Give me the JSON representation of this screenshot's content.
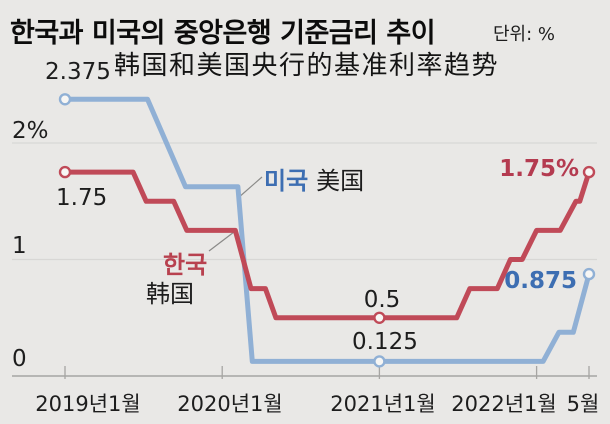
{
  "header": {
    "title": "한국과 미국의 중앙은행 기준금리 추이",
    "unit_label": "단위: %",
    "subtitle": "韩国和美国央行的基准利率趋势"
  },
  "chart_data": {
    "type": "line",
    "title": "한국과 미국의 중앙은행 기준금리 추이",
    "subtitle": "韩国和美国央行的基准利率趋势",
    "unit": "%",
    "grid": "horizontal",
    "y_range": [
      0,
      2.5
    ],
    "x_ticks": [
      {
        "label": "2019년1월",
        "month": 0
      },
      {
        "label": "2020년1월",
        "month": 12
      },
      {
        "label": "2021년1월",
        "month": 24
      },
      {
        "label": "2022년1월",
        "month": 36
      },
      {
        "label": "5월",
        "month": 40
      }
    ],
    "y_ticks": [
      {
        "label": "2%",
        "value": 2,
        "axis": false
      },
      {
        "label": "1",
        "value": 1,
        "axis": false
      },
      {
        "label": "0",
        "value": 0,
        "axis": true
      }
    ],
    "series": [
      {
        "id": "us",
        "name_ko": "미국",
        "name_zh": "美国",
        "line_color": "#90b0d5",
        "label_color": "#3d6eb2",
        "start_label": "2.375",
        "mid_label": "0.125",
        "end_label": "0.875",
        "points_month_rate": [
          [
            0,
            2.375
          ],
          [
            6.3,
            2.375
          ],
          [
            9.2,
            1.625
          ],
          [
            13.2,
            1.625
          ],
          [
            14.3,
            0.125
          ],
          [
            36.5,
            0.125
          ],
          [
            37.7,
            0.375
          ],
          [
            38.8,
            0.375
          ],
          [
            40,
            0.875
          ]
        ],
        "marker_points": [
          [
            0,
            2.375
          ],
          [
            24,
            0.125
          ],
          [
            40,
            0.875
          ]
        ]
      },
      {
        "id": "kr",
        "name_ko": "한국",
        "name_zh": "韩国",
        "line_color": "#c04a58",
        "label_color": "#b43b50",
        "start_label": "1.75",
        "mid_label": "0.5",
        "end_label": "1.75%",
        "points_month_rate": [
          [
            0,
            1.75
          ],
          [
            5.2,
            1.75
          ],
          [
            6.2,
            1.5
          ],
          [
            8.3,
            1.5
          ],
          [
            9.3,
            1.25
          ],
          [
            13.0,
            1.25
          ],
          [
            14.2,
            0.75
          ],
          [
            15.3,
            0.75
          ],
          [
            16.1,
            0.5
          ],
          [
            29.9,
            0.5
          ],
          [
            30.9,
            0.75
          ],
          [
            33.0,
            0.75
          ],
          [
            34.0,
            1.0
          ],
          [
            34.9,
            1.0
          ],
          [
            36.0,
            1.25
          ],
          [
            37.8,
            1.25
          ],
          [
            39.0,
            1.5
          ],
          [
            39.3,
            1.5
          ],
          [
            40,
            1.75
          ]
        ],
        "marker_points": [
          [
            0,
            1.75
          ],
          [
            24,
            0.5
          ],
          [
            40,
            1.75
          ]
        ]
      }
    ],
    "colors": {
      "background": "#e9e8e6",
      "gridline": "#d8d7d5",
      "axis": "#a6a5a3",
      "marker_fill": "#f7f6f4",
      "leader_line": "#8a8a88"
    }
  }
}
